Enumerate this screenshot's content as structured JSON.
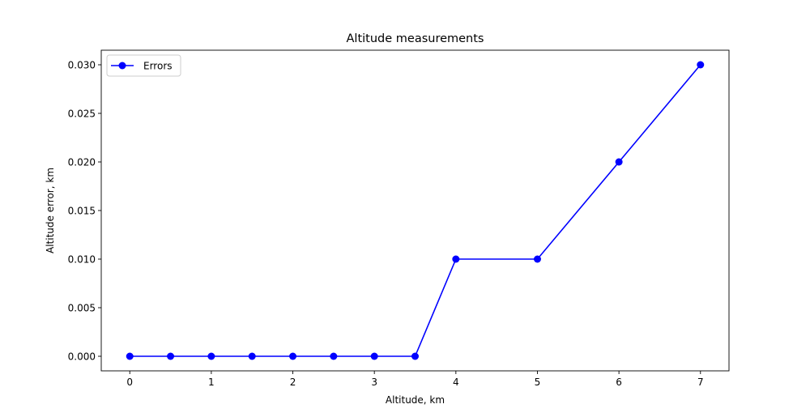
{
  "chart_data": {
    "type": "line",
    "title": "Altitude measurements",
    "xlabel": "Altitude, km",
    "ylabel": "Altitude error, km",
    "xlim": [
      -0.35,
      7.35
    ],
    "ylim": [
      -0.0015,
      0.0315
    ],
    "x_ticks": [
      0,
      1,
      2,
      3,
      4,
      5,
      6,
      7
    ],
    "x_tick_labels": [
      "0",
      "1",
      "2",
      "3",
      "4",
      "5",
      "6",
      "7"
    ],
    "y_ticks": [
      0.0,
      0.005,
      0.01,
      0.015,
      0.02,
      0.025,
      0.03
    ],
    "y_tick_labels": [
      "0.000",
      "0.005",
      "0.010",
      "0.015",
      "0.020",
      "0.025",
      "0.030"
    ],
    "grid": false,
    "legend_position": "top-left",
    "series": [
      {
        "name": "Errors",
        "color": "#0000ff",
        "marker": "circle",
        "x": [
          0,
          0.5,
          1,
          1.5,
          2,
          2.5,
          3,
          3.5,
          4,
          5,
          6,
          7
        ],
        "y": [
          0.0,
          0.0,
          0.0,
          0.0,
          0.0,
          0.0,
          0.0,
          0.0,
          0.01,
          0.01,
          0.02,
          0.03
        ]
      }
    ]
  }
}
